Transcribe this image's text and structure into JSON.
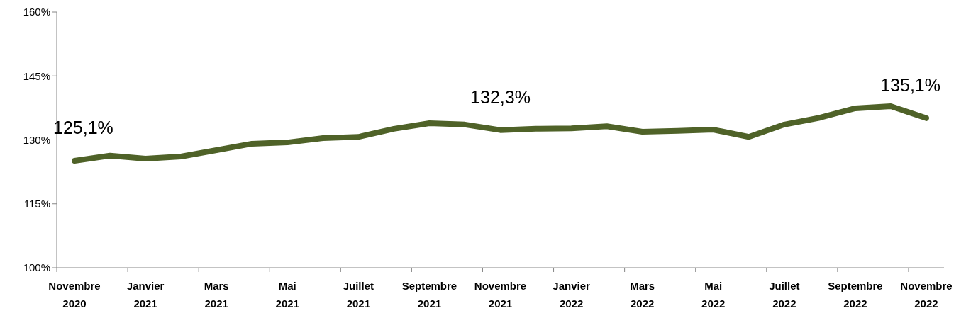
{
  "chart_data": {
    "type": "line",
    "categories": [
      "Novembre 2020",
      null,
      "Janvier 2021",
      null,
      "Mars 2021",
      null,
      "Mai 2021",
      null,
      "Juillet 2021",
      null,
      "Septembre 2021",
      null,
      "Novembre 2021",
      null,
      "Janvier 2022",
      null,
      "Mars 2022",
      null,
      "Mai 2022",
      null,
      "Juillet 2022",
      null,
      "Septembre 2022",
      null,
      "Novembre 2022"
    ],
    "series": [
      {
        "color": "#4f6228",
        "values": [
          125.1,
          126.3,
          125.6,
          126.1,
          127.6,
          129.1,
          129.4,
          130.4,
          130.7,
          132.6,
          133.9,
          133.6,
          132.3,
          132.6,
          132.7,
          133.2,
          131.9,
          132.1,
          132.4,
          130.7,
          133.6,
          135.2,
          137.4,
          137.9,
          135.1
        ],
        "value_labels": [
          "125,1%",
          null,
          null,
          null,
          null,
          null,
          null,
          null,
          null,
          null,
          null,
          null,
          "132,3%",
          null,
          null,
          null,
          null,
          null,
          null,
          null,
          null,
          null,
          null,
          null,
          "135,1%"
        ]
      }
    ],
    "ylim": [
      100,
      160
    ],
    "yticks": [
      {
        "value": 100,
        "label": "100%"
      },
      {
        "value": 115,
        "label": "115%"
      },
      {
        "value": 130,
        "label": "130%"
      },
      {
        "value": 145,
        "label": "145%"
      },
      {
        "value": 160,
        "label": "160%"
      }
    ],
    "grid": false,
    "marker": "none",
    "line_style": "solid"
  }
}
